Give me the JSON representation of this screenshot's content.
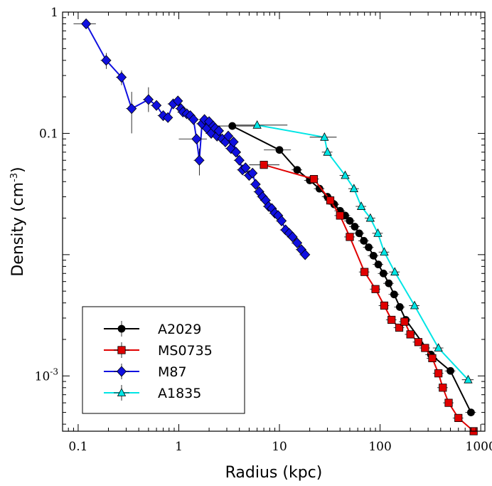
{
  "chart_data": {
    "type": "line",
    "title": "",
    "xlabel": "Radius (kpc)",
    "ylabel": "Density (cm",
    "ylabel_sup": "-3",
    "ylabel_close": ")",
    "xscale": "log",
    "yscale": "log",
    "xlim": [
      0.07,
      1100
    ],
    "ylim": [
      0.00035,
      1
    ],
    "x_ticks": [
      {
        "value": 0.1,
        "label": "0.1"
      },
      {
        "value": 1,
        "label": "1"
      },
      {
        "value": 10,
        "label": "10"
      },
      {
        "value": 100,
        "label": "100"
      },
      {
        "value": 1000,
        "label": "1000"
      }
    ],
    "y_ticks": [
      {
        "value": 1,
        "label": "1",
        "sup": ""
      },
      {
        "value": 0.1,
        "label": "0.1",
        "sup": ""
      },
      {
        "value": 0.001,
        "label": "10",
        "sup": "-3"
      }
    ],
    "grid": false,
    "legend_position": "bottom-left",
    "series": [
      {
        "name": "A2029",
        "color": "#000000",
        "marker": "circle",
        "points": [
          {
            "x": 3.4,
            "y": 0.115,
            "xlo": 1.6,
            "xhi": 6.5
          },
          {
            "x": 10,
            "y": 0.073,
            "xlo": 7,
            "xhi": 13
          },
          {
            "x": 15,
            "y": 0.05
          },
          {
            "x": 20,
            "y": 0.041
          },
          {
            "x": 25,
            "y": 0.035
          },
          {
            "x": 30,
            "y": 0.03
          },
          {
            "x": 35,
            "y": 0.026
          },
          {
            "x": 40,
            "y": 0.023
          },
          {
            "x": 45,
            "y": 0.021
          },
          {
            "x": 50,
            "y": 0.019
          },
          {
            "x": 56,
            "y": 0.017
          },
          {
            "x": 62,
            "y": 0.015
          },
          {
            "x": 69,
            "y": 0.013
          },
          {
            "x": 77,
            "y": 0.0115
          },
          {
            "x": 86,
            "y": 0.0098
          },
          {
            "x": 96,
            "y": 0.0083
          },
          {
            "x": 108,
            "y": 0.007
          },
          {
            "x": 122,
            "y": 0.0058
          },
          {
            "x": 138,
            "y": 0.0047
          },
          {
            "x": 157,
            "y": 0.0037
          },
          {
            "x": 180,
            "y": 0.0029
          },
          {
            "x": 320,
            "y": 0.0015
          },
          {
            "x": 500,
            "y": 0.0011
          },
          {
            "x": 800,
            "y": 0.0005
          }
        ]
      },
      {
        "name": "MS0735",
        "color": "#e00000",
        "marker": "square",
        "points": [
          {
            "x": 7,
            "y": 0.055,
            "xlo": 5,
            "xhi": 10
          },
          {
            "x": 22,
            "y": 0.042
          },
          {
            "x": 32,
            "y": 0.028
          },
          {
            "x": 40,
            "y": 0.021
          },
          {
            "x": 50,
            "y": 0.014
          },
          {
            "x": 70,
            "y": 0.0072
          },
          {
            "x": 90,
            "y": 0.0052
          },
          {
            "x": 110,
            "y": 0.0038
          },
          {
            "x": 130,
            "y": 0.0029
          },
          {
            "x": 155,
            "y": 0.0025
          },
          {
            "x": 175,
            "y": 0.0028
          },
          {
            "x": 200,
            "y": 0.0022
          },
          {
            "x": 240,
            "y": 0.0019
          },
          {
            "x": 280,
            "y": 0.0017
          },
          {
            "x": 330,
            "y": 0.0014
          },
          {
            "x": 380,
            "y": 0.00105
          },
          {
            "x": 420,
            "y": 0.0008
          },
          {
            "x": 480,
            "y": 0.0006
          },
          {
            "x": 600,
            "y": 0.00045
          },
          {
            "x": 850,
            "y": 0.00035
          }
        ]
      },
      {
        "name": "M87",
        "color": "#1010e0",
        "marker": "diamond",
        "points": [
          {
            "x": 0.12,
            "y": 0.8,
            "xlo": 0.09,
            "xhi": 0.15
          },
          {
            "x": 0.19,
            "y": 0.4,
            "ylo": 0.34,
            "yhi": 0.46
          },
          {
            "x": 0.27,
            "y": 0.29,
            "ylo": 0.25,
            "yhi": 0.33
          },
          {
            "x": 0.34,
            "y": 0.16,
            "ylo": 0.1,
            "yhi": 0.22
          },
          {
            "x": 0.5,
            "y": 0.19,
            "ylo": 0.15,
            "yhi": 0.24
          },
          {
            "x": 0.6,
            "y": 0.17
          },
          {
            "x": 0.7,
            "y": 0.14
          },
          {
            "x": 0.78,
            "y": 0.135
          },
          {
            "x": 0.88,
            "y": 0.175
          },
          {
            "x": 0.98,
            "y": 0.185
          },
          {
            "x": 1.05,
            "y": 0.16
          },
          {
            "x": 1.1,
            "y": 0.15
          },
          {
            "x": 1.2,
            "y": 0.145
          },
          {
            "x": 1.3,
            "y": 0.14
          },
          {
            "x": 1.4,
            "y": 0.13
          },
          {
            "x": 1.5,
            "y": 0.09,
            "xlo": 1.0,
            "xhi": 1.9
          },
          {
            "x": 1.6,
            "y": 0.06,
            "ylo": 0.045,
            "yhi": 0.075
          },
          {
            "x": 1.7,
            "y": 0.12
          },
          {
            "x": 1.8,
            "y": 0.13
          },
          {
            "x": 1.9,
            "y": 0.11
          },
          {
            "x": 2.0,
            "y": 0.125
          },
          {
            "x": 2.1,
            "y": 0.1
          },
          {
            "x": 2.2,
            "y": 0.115
          },
          {
            "x": 2.3,
            "y": 0.11
          },
          {
            "x": 2.4,
            "y": 0.095
          },
          {
            "x": 2.5,
            "y": 0.105
          },
          {
            "x": 2.7,
            "y": 0.09
          },
          {
            "x": 2.9,
            "y": 0.085
          },
          {
            "x": 3.1,
            "y": 0.095
          },
          {
            "x": 3.3,
            "y": 0.075
          },
          {
            "x": 3.5,
            "y": 0.085
          },
          {
            "x": 3.7,
            "y": 0.07
          },
          {
            "x": 4.0,
            "y": 0.06
          },
          {
            "x": 4.3,
            "y": 0.05
          },
          {
            "x": 4.6,
            "y": 0.052
          },
          {
            "x": 5.0,
            "y": 0.045
          },
          {
            "x": 5.4,
            "y": 0.047
          },
          {
            "x": 5.8,
            "y": 0.038
          },
          {
            "x": 6.3,
            "y": 0.033
          },
          {
            "x": 6.8,
            "y": 0.03
          },
          {
            "x": 7.3,
            "y": 0.028
          },
          {
            "x": 7.8,
            "y": 0.025
          },
          {
            "x": 8.4,
            "y": 0.024
          },
          {
            "x": 9.0,
            "y": 0.022
          },
          {
            "x": 9.7,
            "y": 0.021
          },
          {
            "x": 10.5,
            "y": 0.019
          },
          {
            "x": 11.5,
            "y": 0.016
          },
          {
            "x": 12.5,
            "y": 0.015
          },
          {
            "x": 13.5,
            "y": 0.014
          },
          {
            "x": 15,
            "y": 0.0125
          },
          {
            "x": 16.5,
            "y": 0.011
          },
          {
            "x": 18,
            "y": 0.01
          }
        ]
      },
      {
        "name": "A1835",
        "color": "#00e5e5",
        "marker": "triangle",
        "points": [
          {
            "x": 6,
            "y": 0.117,
            "xlo": 3.5,
            "xhi": 12
          },
          {
            "x": 28,
            "y": 0.093,
            "xlo": 20,
            "xhi": 37
          },
          {
            "x": 30,
            "y": 0.07
          },
          {
            "x": 45,
            "y": 0.045
          },
          {
            "x": 55,
            "y": 0.035
          },
          {
            "x": 65,
            "y": 0.025
          },
          {
            "x": 80,
            "y": 0.02
          },
          {
            "x": 95,
            "y": 0.015
          },
          {
            "x": 110,
            "y": 0.0105
          },
          {
            "x": 140,
            "y": 0.0072
          },
          {
            "x": 220,
            "y": 0.0038
          },
          {
            "x": 380,
            "y": 0.0017
          },
          {
            "x": 750,
            "y": 0.00093,
            "xlo": 650,
            "xhi": 850
          }
        ]
      }
    ]
  }
}
